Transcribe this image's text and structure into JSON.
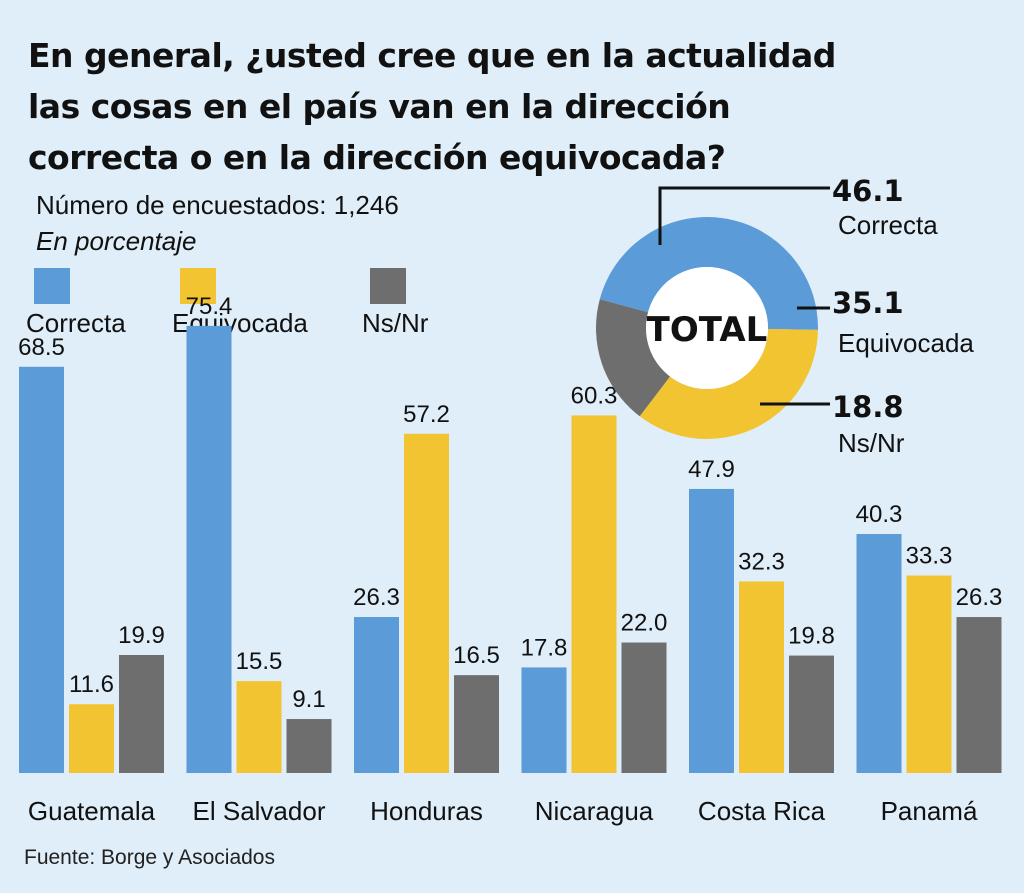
{
  "header": {
    "title_lines": [
      "En general, ¿usted cree que en la actualidad",
      "las cosas en el país van en la dirección",
      "correcta o en la dirección equivocada?"
    ],
    "subtitle": "Número de encuestados: 1,246",
    "unit": "En porcentaje"
  },
  "legend": [
    {
      "label": "Correcta",
      "color": "#5b9bd8"
    },
    {
      "label": "Equivocada",
      "color": "#f2c431"
    },
    {
      "label": "Ns/Nr",
      "color": "#6e6e6e"
    }
  ],
  "source": "Fuente: Borge y Asociados",
  "chart_data": [
    {
      "type": "pie",
      "center_label": "TOTAL",
      "slices": [
        {
          "label": "Correcta",
          "value": 46.1,
          "display": "46.1",
          "color": "#5b9bd8"
        },
        {
          "label": "Equivocada",
          "value": 35.1,
          "display": "35.1",
          "color": "#f2c431"
        },
        {
          "label": "Ns/Nr",
          "value": 18.8,
          "display": "18.8",
          "color": "#6e6e6e"
        }
      ]
    },
    {
      "type": "bar",
      "categories": [
        "Guatemala",
        "El Salvador",
        "Honduras",
        "Nicaragua",
        "Costa Rica",
        "Panamá"
      ],
      "series": [
        {
          "name": "Correcta",
          "color": "#5b9bd8",
          "values": [
            68.5,
            75.4,
            26.3,
            17.8,
            47.9,
            40.3
          ],
          "labels": [
            "68.5",
            "75.4",
            "26.3",
            "17.8",
            "47.9",
            "40.3"
          ]
        },
        {
          "name": "Equivocada",
          "color": "#f2c431",
          "values": [
            11.6,
            15.5,
            57.2,
            60.3,
            32.3,
            33.3
          ],
          "labels": [
            "11.6",
            "15.5",
            "57.2",
            "60.3",
            "32.3",
            "33.3"
          ]
        },
        {
          "name": "Ns/Nr",
          "color": "#6e6e6e",
          "values": [
            19.9,
            9.1,
            16.5,
            22.0,
            19.8,
            26.3
          ],
          "labels": [
            "19.9",
            "9.1",
            "16.5",
            "22.0",
            "19.8",
            "26.3"
          ]
        }
      ],
      "ylim": [
        0,
        100
      ]
    }
  ]
}
